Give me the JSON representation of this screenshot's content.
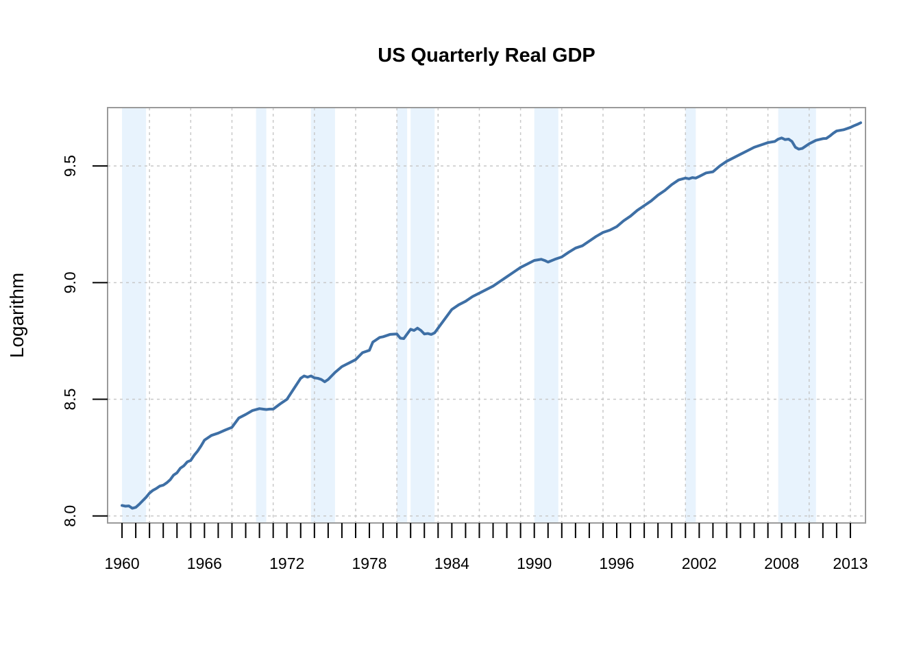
{
  "chart_data": {
    "type": "line",
    "title": "US Quarterly Real GDP",
    "xlabel": "",
    "ylabel": "Logarithm",
    "xlim": [
      1958.95,
      2014.1
    ],
    "ylim": [
      7.97,
      9.75
    ],
    "grid": true,
    "y_ticks": [
      8.0,
      8.5,
      9.0,
      9.5
    ],
    "y_tick_labels": [
      "8.0",
      "8.5",
      "9.0",
      "9.5"
    ],
    "x_tick_labels": [
      "1960",
      "1966",
      "1972",
      "1978",
      "1984",
      "1990",
      "1996",
      "2002",
      "2008",
      "2013"
    ],
    "x_tick_label_years": [
      1960,
      1966,
      1972,
      1978,
      1984,
      1990,
      1996,
      2002,
      2008,
      2013
    ],
    "x_ticks_yearly": [
      1960,
      1961,
      1962,
      1963,
      1964,
      1965,
      1966,
      1967,
      1968,
      1969,
      1970,
      1971,
      1972,
      1973,
      1974,
      1975,
      1976,
      1977,
      1978,
      1979,
      1980,
      1981,
      1982,
      1983,
      1984,
      1985,
      1986,
      1987,
      1988,
      1989,
      1990,
      1991,
      1992,
      1993,
      1994,
      1995,
      1996,
      1997,
      1998,
      1999,
      2000,
      2001,
      2002,
      2003,
      2004,
      2005,
      2006,
      2007,
      2008,
      2009,
      2010,
      2011,
      2012,
      2013
    ],
    "recessions": [
      [
        1960.0,
        1961.75
      ],
      [
        1969.75,
        1970.5
      ],
      [
        1973.75,
        1975.5
      ],
      [
        1980.0,
        1980.75
      ],
      [
        1981.0,
        1982.75
      ],
      [
        1990.0,
        1991.75
      ],
      [
        2001.0,
        2001.75
      ],
      [
        2007.75,
        2010.5
      ]
    ],
    "recession_color": "#e8f3fd",
    "line_color": "#3e6fa5",
    "grid_color": "#c8c8c8",
    "series": [
      {
        "x": [
          1960.0,
          1960.25,
          1960.5,
          1960.75,
          1961.0,
          1961.25,
          1961.5,
          1961.75,
          1962.0,
          1962.25,
          1962.5,
          1962.75,
          1963.0,
          1963.25,
          1963.5,
          1963.75,
          1964.0,
          1964.25,
          1964.5,
          1964.75,
          1965.0,
          1965.25,
          1965.5,
          1965.75,
          1966.0,
          1966.5,
          1967.0,
          1967.5,
          1968.0,
          1968.5,
          1969.0,
          1969.5,
          1970.0,
          1970.25,
          1970.5,
          1970.75,
          1971.0,
          1971.5,
          1972.0,
          1972.5,
          1973.0,
          1973.25,
          1973.5,
          1973.75,
          1974.0,
          1974.25,
          1974.5,
          1974.75,
          1975.0,
          1975.25,
          1975.5,
          1976.0,
          1976.5,
          1977.0,
          1977.5,
          1978.0,
          1978.25,
          1978.5,
          1978.75,
          1979.0,
          1979.5,
          1980.0,
          1980.25,
          1980.5,
          1980.75,
          1981.0,
          1981.25,
          1981.5,
          1981.75,
          1982.0,
          1982.25,
          1982.5,
          1982.75,
          1983.0,
          1983.5,
          1984.0,
          1984.5,
          1985.0,
          1985.5,
          1986.0,
          1986.5,
          1987.0,
          1987.5,
          1988.0,
          1988.5,
          1989.0,
          1989.5,
          1990.0,
          1990.5,
          1990.75,
          1991.0,
          1991.5,
          1992.0,
          1992.5,
          1993.0,
          1993.5,
          1994.0,
          1994.5,
          1995.0,
          1995.5,
          1996.0,
          1996.5,
          1997.0,
          1997.5,
          1998.0,
          1998.5,
          1999.0,
          1999.5,
          2000.0,
          2000.5,
          2001.0,
          2001.25,
          2001.5,
          2001.75,
          2002.0,
          2002.5,
          2003.0,
          2003.5,
          2004.0,
          2004.5,
          2005.0,
          2005.5,
          2006.0,
          2006.5,
          2007.0,
          2007.5,
          2007.75,
          2008.0,
          2008.25,
          2008.5,
          2008.75,
          2009.0,
          2009.25,
          2009.5,
          2009.75,
          2010.0,
          2010.5,
          2011.0,
          2011.25,
          2011.5,
          2011.75,
          2012.0,
          2012.5,
          2013.0,
          2013.25,
          2013.5,
          2013.75
        ],
        "y": [
          8.045,
          8.042,
          8.043,
          8.033,
          8.037,
          8.05,
          8.065,
          8.08,
          8.098,
          8.11,
          8.118,
          8.128,
          8.132,
          8.142,
          8.155,
          8.175,
          8.185,
          8.205,
          8.215,
          8.232,
          8.238,
          8.26,
          8.278,
          8.3,
          8.325,
          8.345,
          8.355,
          8.368,
          8.38,
          8.42,
          8.435,
          8.452,
          8.46,
          8.458,
          8.456,
          8.458,
          8.458,
          8.48,
          8.5,
          8.545,
          8.59,
          8.6,
          8.595,
          8.6,
          8.592,
          8.59,
          8.585,
          8.575,
          8.585,
          8.6,
          8.615,
          8.64,
          8.655,
          8.67,
          8.7,
          8.71,
          8.745,
          8.755,
          8.765,
          8.768,
          8.778,
          8.78,
          8.762,
          8.76,
          8.78,
          8.8,
          8.795,
          8.805,
          8.795,
          8.78,
          8.782,
          8.778,
          8.785,
          8.805,
          8.845,
          8.885,
          8.905,
          8.92,
          8.94,
          8.955,
          8.97,
          8.985,
          9.005,
          9.025,
          9.045,
          9.065,
          9.08,
          9.095,
          9.1,
          9.095,
          9.088,
          9.1,
          9.11,
          9.13,
          9.148,
          9.158,
          9.178,
          9.198,
          9.215,
          9.225,
          9.24,
          9.265,
          9.285,
          9.31,
          9.33,
          9.35,
          9.375,
          9.395,
          9.42,
          9.44,
          9.448,
          9.445,
          9.45,
          9.448,
          9.455,
          9.47,
          9.475,
          9.5,
          9.52,
          9.535,
          9.55,
          9.565,
          9.58,
          9.59,
          9.6,
          9.605,
          9.615,
          9.62,
          9.613,
          9.615,
          9.605,
          9.58,
          9.572,
          9.575,
          9.585,
          9.595,
          9.61,
          9.617,
          9.618,
          9.628,
          9.64,
          9.65,
          9.655,
          9.665,
          9.672,
          9.678,
          9.685
        ]
      }
    ]
  }
}
